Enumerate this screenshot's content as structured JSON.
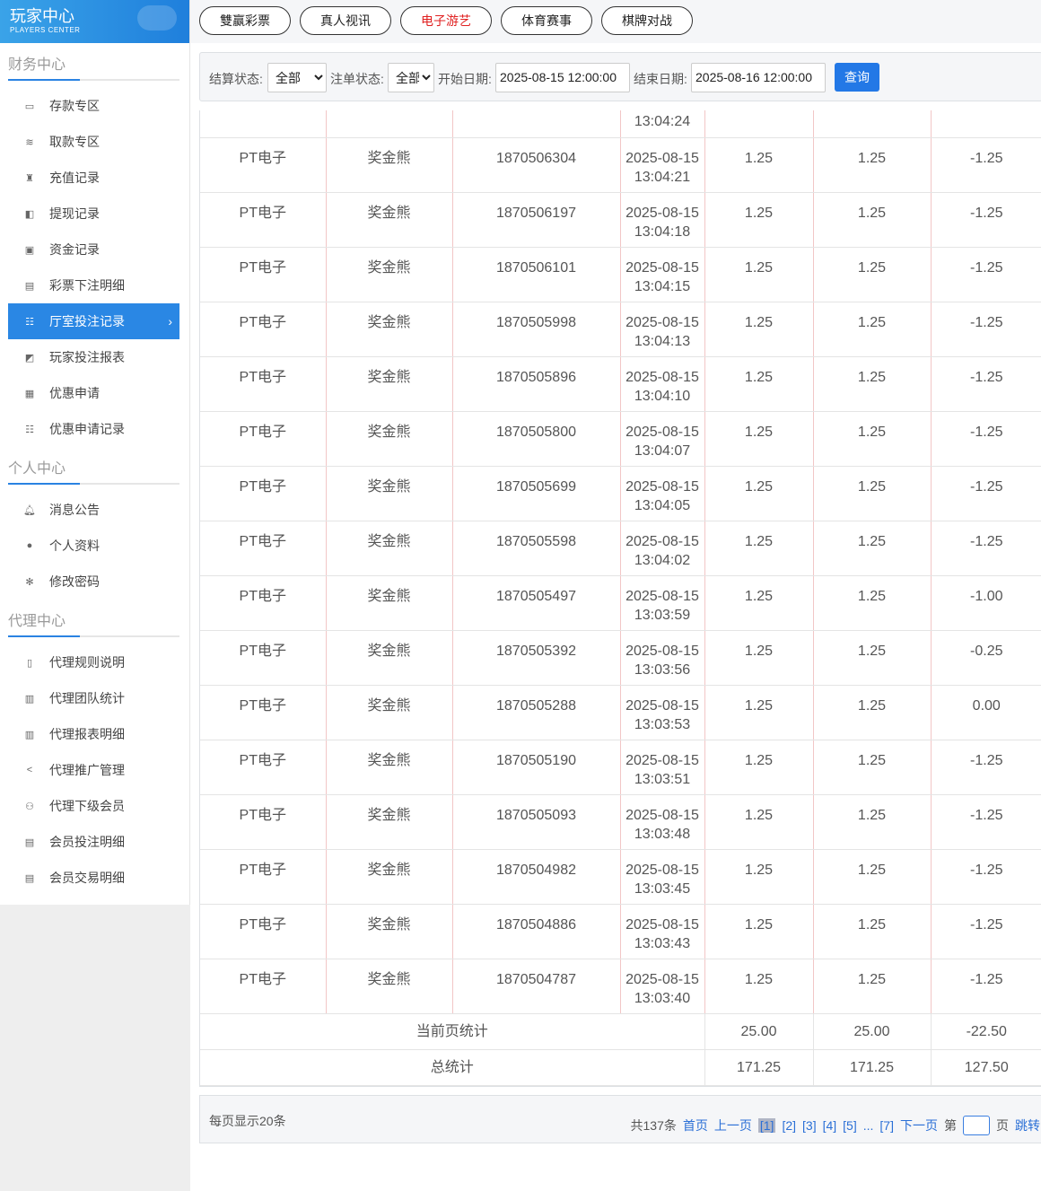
{
  "brand": {
    "title": "玩家中心",
    "subtitle": "PLAYERS CENTER"
  },
  "sidebar": {
    "sections": [
      {
        "title": "财务中心",
        "items": [
          {
            "label": "存款专区",
            "icon": "card-icon"
          },
          {
            "label": "取款专区",
            "icon": "cash-icon"
          },
          {
            "label": "充值记录",
            "icon": "bag-icon"
          },
          {
            "label": "提现记录",
            "icon": "wallet-icon"
          },
          {
            "label": "资金记录",
            "icon": "safe-icon"
          },
          {
            "label": "彩票下注明细",
            "icon": "ticket-icon"
          },
          {
            "label": "厅室投注记录",
            "icon": "list-icon",
            "active": true
          },
          {
            "label": "玩家投注报表",
            "icon": "chart-icon"
          },
          {
            "label": "优惠申请",
            "icon": "gift-icon"
          },
          {
            "label": "优惠申请记录",
            "icon": "list-icon"
          }
        ]
      },
      {
        "title": "个人中心",
        "items": [
          {
            "label": "消息公告",
            "icon": "bell-icon"
          },
          {
            "label": "个人资料",
            "icon": "user-icon"
          },
          {
            "label": "修改密码",
            "icon": "gear-icon"
          }
        ]
      },
      {
        "title": "代理中心",
        "items": [
          {
            "label": "代理规则说明",
            "icon": "file-icon"
          },
          {
            "label": "代理团队统计",
            "icon": "book-icon"
          },
          {
            "label": "代理报表明细",
            "icon": "book-icon"
          },
          {
            "label": "代理推广管理",
            "icon": "share-icon"
          },
          {
            "label": "代理下级会员",
            "icon": "users-icon"
          },
          {
            "label": "会员投注明细",
            "icon": "clipboard-icon"
          },
          {
            "label": "会员交易明细",
            "icon": "clipboard-icon"
          }
        ]
      }
    ]
  },
  "tabs": [
    {
      "label": "雙赢彩票"
    },
    {
      "label": "真人视讯"
    },
    {
      "label": "电子游艺",
      "active": true
    },
    {
      "label": "体育赛事"
    },
    {
      "label": "棋牌对战"
    }
  ],
  "filter": {
    "settle_label": "结算状态:",
    "settle_value": "全部",
    "order_label": "注单状态:",
    "order_value": "全部",
    "start_label": "开始日期:",
    "start_value": "2025-08-15 12:00:00",
    "end_label": "结束日期:",
    "end_value": "2025-08-16 12:00:00",
    "query": "查询"
  },
  "table": {
    "partial_time": "13:04:24",
    "rows": [
      [
        "PT电子",
        "奖金熊",
        "1870506304",
        "2025-08-15",
        "13:04:21",
        "1.25",
        "1.25",
        "-1.25"
      ],
      [
        "PT电子",
        "奖金熊",
        "1870506197",
        "2025-08-15",
        "13:04:18",
        "1.25",
        "1.25",
        "-1.25"
      ],
      [
        "PT电子",
        "奖金熊",
        "1870506101",
        "2025-08-15",
        "13:04:15",
        "1.25",
        "1.25",
        "-1.25"
      ],
      [
        "PT电子",
        "奖金熊",
        "1870505998",
        "2025-08-15",
        "13:04:13",
        "1.25",
        "1.25",
        "-1.25"
      ],
      [
        "PT电子",
        "奖金熊",
        "1870505896",
        "2025-08-15",
        "13:04:10",
        "1.25",
        "1.25",
        "-1.25"
      ],
      [
        "PT电子",
        "奖金熊",
        "1870505800",
        "2025-08-15",
        "13:04:07",
        "1.25",
        "1.25",
        "-1.25"
      ],
      [
        "PT电子",
        "奖金熊",
        "1870505699",
        "2025-08-15",
        "13:04:05",
        "1.25",
        "1.25",
        "-1.25"
      ],
      [
        "PT电子",
        "奖金熊",
        "1870505598",
        "2025-08-15",
        "13:04:02",
        "1.25",
        "1.25",
        "-1.25"
      ],
      [
        "PT电子",
        "奖金熊",
        "1870505497",
        "2025-08-15",
        "13:03:59",
        "1.25",
        "1.25",
        "-1.00"
      ],
      [
        "PT电子",
        "奖金熊",
        "1870505392",
        "2025-08-15",
        "13:03:56",
        "1.25",
        "1.25",
        "-0.25"
      ],
      [
        "PT电子",
        "奖金熊",
        "1870505288",
        "2025-08-15",
        "13:03:53",
        "1.25",
        "1.25",
        "0.00"
      ],
      [
        "PT电子",
        "奖金熊",
        "1870505190",
        "2025-08-15",
        "13:03:51",
        "1.25",
        "1.25",
        "-1.25"
      ],
      [
        "PT电子",
        "奖金熊",
        "1870505093",
        "2025-08-15",
        "13:03:48",
        "1.25",
        "1.25",
        "-1.25"
      ],
      [
        "PT电子",
        "奖金熊",
        "1870504982",
        "2025-08-15",
        "13:03:45",
        "1.25",
        "1.25",
        "-1.25"
      ],
      [
        "PT电子",
        "奖金熊",
        "1870504886",
        "2025-08-15",
        "13:03:43",
        "1.25",
        "1.25",
        "-1.25"
      ],
      [
        "PT电子",
        "奖金熊",
        "1870504787",
        "2025-08-15",
        "13:03:40",
        "1.25",
        "1.25",
        "-1.25"
      ]
    ],
    "page_summary": {
      "label": "当前页统计",
      "values": [
        "25.00",
        "25.00",
        "-22.50"
      ]
    },
    "total_summary": {
      "label": "总统计",
      "values": [
        "171.25",
        "171.25",
        "127.50"
      ]
    }
  },
  "pager": {
    "per_page": "每页显示20条",
    "total": "共137条",
    "first": "首页",
    "prev": "上一页",
    "pages": [
      "[1]",
      "[2]",
      "[3]",
      "[4]",
      "[5]",
      "...",
      "[7]"
    ],
    "current": "[1]",
    "next": "下一页",
    "goto_prefix": "第",
    "goto_suffix": "页",
    "jump": "跳转"
  },
  "colors": {
    "accent": "#2a87e4",
    "active_tab_text": "#e02020"
  }
}
